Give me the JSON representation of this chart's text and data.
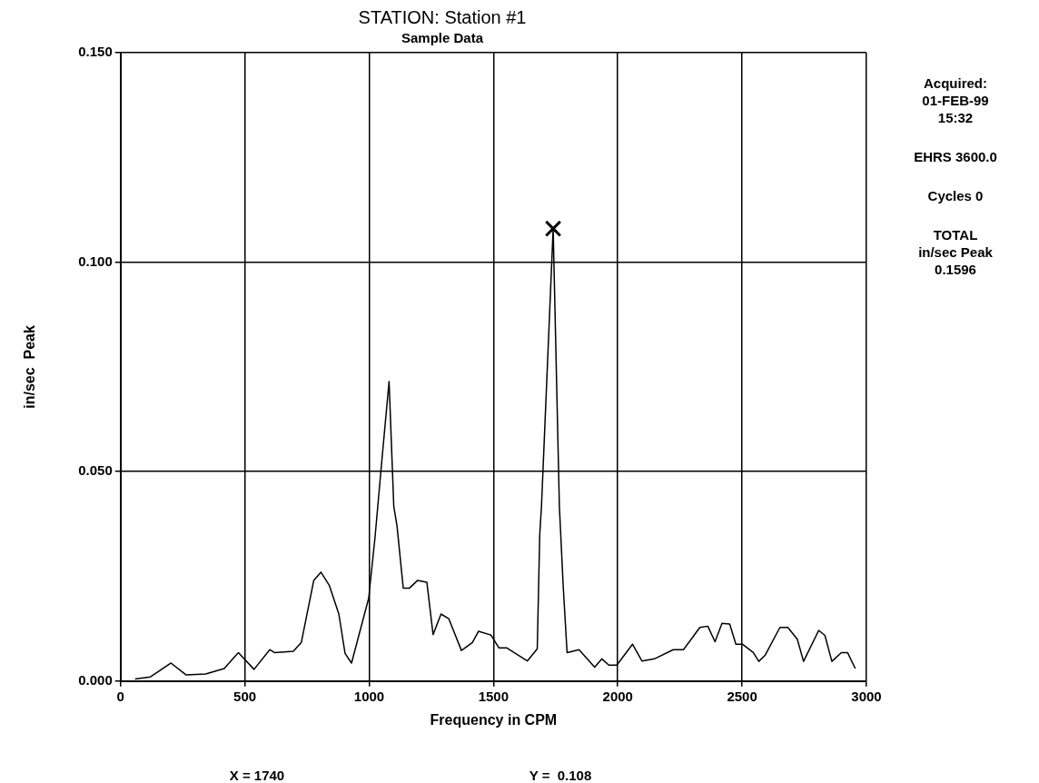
{
  "chart_data": {
    "type": "line",
    "title": "STATION: Station #1",
    "subtitle": "Sample Data",
    "xlabel": "Frequency in CPM",
    "ylabel": "in/sec  Peak",
    "x": [
      58,
      120,
      203,
      263,
      342,
      417,
      474,
      537,
      600,
      619,
      695,
      727,
      777,
      806,
      840,
      878,
      903,
      929,
      998,
      1023,
      1050,
      1080,
      1099,
      1112,
      1137,
      1162,
      1194,
      1232,
      1257,
      1289,
      1320,
      1371,
      1415,
      1440,
      1484,
      1491,
      1522,
      1554,
      1636,
      1676,
      1686,
      1693,
      1740,
      1765,
      1781,
      1796,
      1844,
      1907,
      1936,
      1964,
      1996,
      2059,
      2097,
      2147,
      2223,
      2264,
      2330,
      2362,
      2391,
      2419,
      2450,
      2475,
      2501,
      2545,
      2567,
      2593,
      2652,
      2684,
      2722,
      2747,
      2808,
      2833,
      2861,
      2899,
      2924,
      2955
    ],
    "series": [
      {
        "color": "#000000",
        "values": [
          0.0005,
          0.001,
          0.0043,
          0.0015,
          0.0017,
          0.003,
          0.0068,
          0.0028,
          0.0075,
          0.0068,
          0.0071,
          0.0092,
          0.024,
          0.026,
          0.0228,
          0.016,
          0.0066,
          0.0043,
          0.0198,
          0.034,
          0.052,
          0.0715,
          0.0417,
          0.037,
          0.0222,
          0.0222,
          0.024,
          0.0236,
          0.0111,
          0.016,
          0.0149,
          0.0073,
          0.0092,
          0.0119,
          0.0111,
          0.0109,
          0.0079,
          0.0079,
          0.0048,
          0.0077,
          0.0349,
          0.0417,
          0.108,
          0.0417,
          0.022,
          0.0068,
          0.0075,
          0.0033,
          0.0053,
          0.0038,
          0.0038,
          0.0088,
          0.0048,
          0.0053,
          0.0075,
          0.0075,
          0.0128,
          0.0131,
          0.0094,
          0.0138,
          0.0136,
          0.0088,
          0.0088,
          0.0068,
          0.0047,
          0.0062,
          0.0128,
          0.0128,
          0.01,
          0.0047,
          0.0121,
          0.0109,
          0.0047,
          0.0068,
          0.0068,
          0.003
        ]
      },
      {
        "type": "scatter",
        "color": "#000000",
        "marker": "cross",
        "x": [
          1740
        ],
        "values": [
          0.108
        ]
      }
    ],
    "xlim": [
      0,
      3000
    ],
    "xticks": [
      0,
      500,
      1000,
      1500,
      2000,
      2500,
      3000
    ],
    "ylim": [
      0,
      0.15
    ],
    "yticks": [
      {
        "value": 0,
        "label": "0.000"
      },
      {
        "value": 0.05,
        "label": "0.050"
      },
      {
        "value": 0.1,
        "label": "0.100"
      },
      {
        "value": 0.15,
        "label": "0.150"
      }
    ],
    "grid": true,
    "legend": false,
    "marker": "none",
    "line_style": "solid",
    "annotations": [
      "Acquired:\n01-FEB-99\n15:32",
      "EHRS 3600.0",
      "Cycles 0",
      "TOTAL\nin/sec  Peak\n0.1596",
      "X = 1740",
      "Y =  0.108"
    ]
  }
}
